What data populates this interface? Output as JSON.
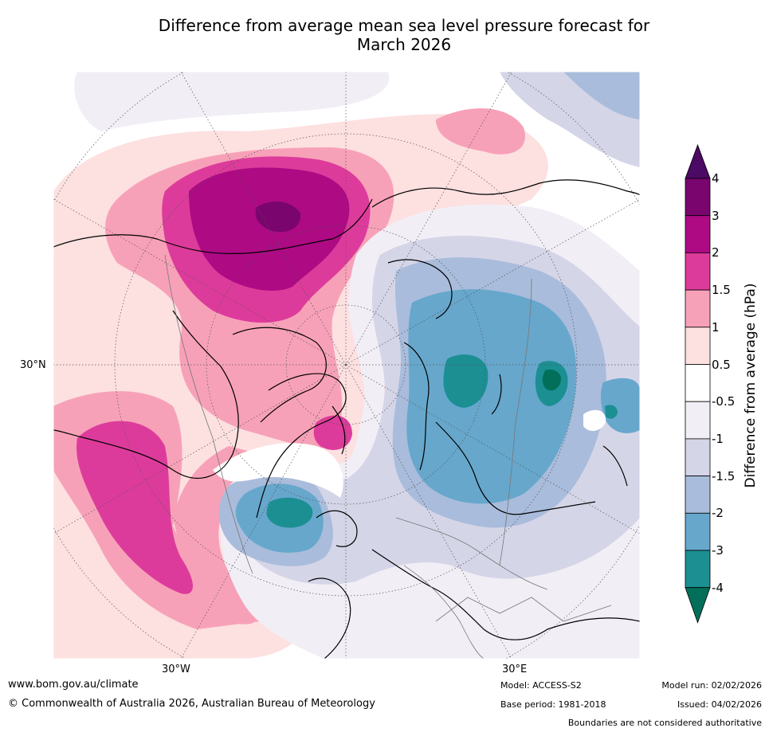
{
  "title": {
    "line1": "Difference from average mean sea level pressure forecast for",
    "line2": "March 2026"
  },
  "axis_labels": {
    "lat_30n": "30°N",
    "lon_30w": "30°W",
    "lon_30e": "30°E"
  },
  "colorbar": {
    "title": "Difference from average (hPa)",
    "ticks": [
      "4",
      "3",
      "2",
      "1.5",
      "1",
      "0.5",
      "-0.5",
      "-1",
      "-1.5",
      "-2",
      "-3",
      "-4"
    ],
    "colors": [
      "#4b0a63",
      "#7a056f",
      "#ad0a84",
      "#dd3b9b",
      "#f7a1b8",
      "#fde0e0",
      "#ffffff",
      "#f2eef6",
      "#d5d5e8",
      "#a9bcdb",
      "#67a7cc",
      "#1c8f93",
      "#026f5a"
    ]
  },
  "footer": {
    "url": "www.bom.gov.au/climate",
    "copyright": "© Commonwealth of Australia 2026, Australian Bureau of Meteorology",
    "model": "Model: ACCESS-S2",
    "base_period": "Base period: 1981-2018",
    "model_run": "Model run: 02/02/2026",
    "issued": "Issued: 04/02/2026",
    "disclaimer": "Boundaries are not considered authoritative"
  }
}
